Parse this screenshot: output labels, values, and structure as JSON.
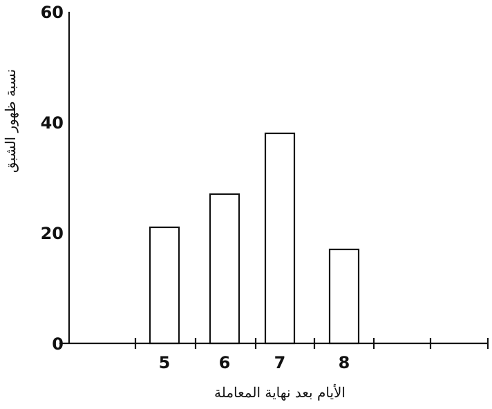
{
  "chart_data": {
    "type": "bar",
    "xlabel": "الأيام بعد نهاية المعاملة",
    "ylabel": "نسبة ظهور الشبق",
    "categories": [
      "5",
      "6",
      "7",
      "8"
    ],
    "values": [
      21,
      27,
      38,
      17
    ],
    "ylim": [
      0,
      60
    ],
    "yticks": [
      "0",
      "20",
      "40",
      "60"
    ],
    "grid": false,
    "legend": "none"
  }
}
